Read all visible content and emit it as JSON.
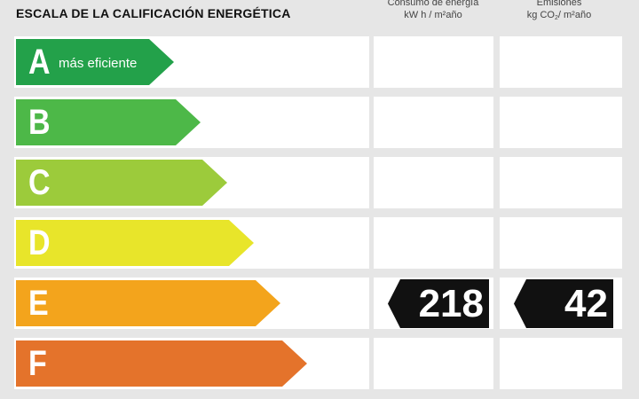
{
  "header": {
    "title": "ESCALA DE LA CALIFICACIÓN ENERGÉTICA",
    "consumo_line1": "Consumo de energía",
    "consumo_line2": "kW h / m²año",
    "emisiones_line1": "Emisiones",
    "emisiones_line2_a": "kg CO",
    "emisiones_line2_sub": "2",
    "emisiones_line2_b": "/ m²año"
  },
  "rating": {
    "current_class": "E",
    "consumo_value": "218",
    "emisiones_value": "42",
    "indicator_color": "#111111"
  },
  "scale": [
    {
      "letter": "A",
      "note": "más eficiente",
      "color": "#23a14a"
    },
    {
      "letter": "B",
      "note": "",
      "color": "#4db848"
    },
    {
      "letter": "C",
      "note": "",
      "color": "#9ccb3b"
    },
    {
      "letter": "D",
      "note": "",
      "color": "#e8e52a"
    },
    {
      "letter": "E",
      "note": "",
      "color": "#f3a41c"
    },
    {
      "letter": "F",
      "note": "",
      "color": "#e4732b"
    }
  ]
}
